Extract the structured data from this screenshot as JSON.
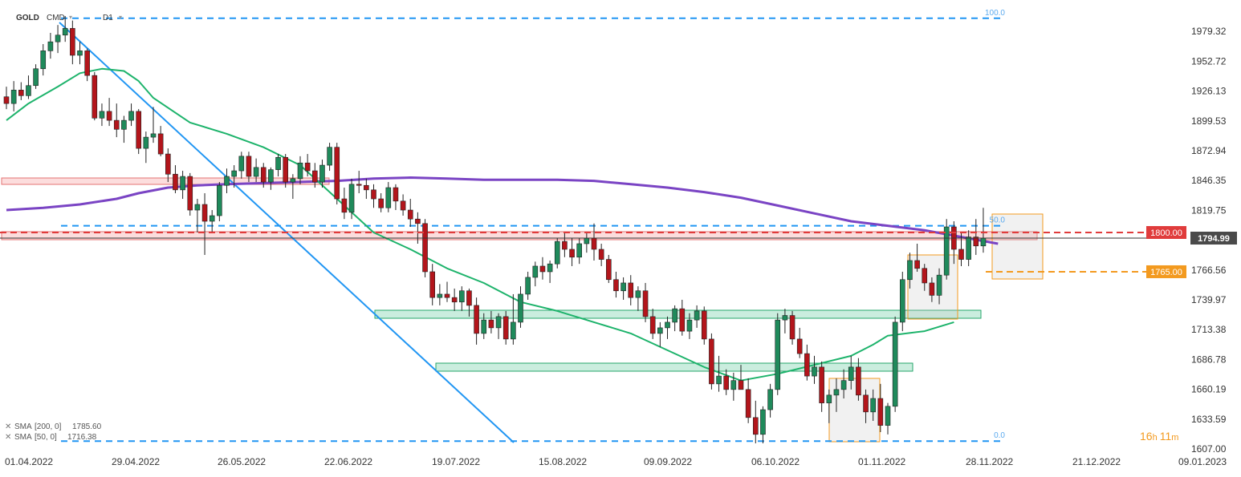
{
  "header": {
    "symbol": "GOLD",
    "source": "CMD",
    "timeframe": "D1"
  },
  "countdown": {
    "hours": "16",
    "h": "h",
    "minutes": "11",
    "m": "m"
  },
  "chart_data": {
    "type": "candlestick",
    "ylim": [
      1607.0,
      1993.0
    ],
    "y_ticks": [
      "1979.32",
      "1952.72",
      "1926.13",
      "1899.53",
      "1872.94",
      "1846.35",
      "1819.75",
      "1793.16",
      "1766.56",
      "1739.97",
      "1713.38",
      "1686.78",
      "1660.19",
      "1633.59",
      "1607.00"
    ],
    "x_ticks": [
      "01.04.2022",
      "29.04.2022",
      "26.05.2022",
      "22.06.2022",
      "19.07.2022",
      "15.08.2022",
      "09.09.2022",
      "06.10.2022",
      "01.11.2022",
      "28.11.2022",
      "21.12.2022",
      "09.01.2023"
    ],
    "price_tags": [
      {
        "value": "1800.00",
        "color": "#e03c3c"
      },
      {
        "value": "1794.99",
        "color": "#4a4a4a"
      },
      {
        "value": "1765.00",
        "color": "#f39a1f"
      }
    ],
    "fib_levels": [
      {
        "label": "100.0",
        "price": 1991
      },
      {
        "label": "50.0",
        "price": 1806
      },
      {
        "label": "0.0",
        "price": 1614
      }
    ],
    "indicators": [
      {
        "name": "SMA",
        "params": "[200, 0]",
        "value": "1785.60",
        "color": "#7a44c4"
      },
      {
        "name": "SMA",
        "params": "[50, 0]",
        "value": "1716.38",
        "color": "#1db36b"
      }
    ],
    "sma200_path": [
      [
        0,
        1820
      ],
      [
        5,
        1822
      ],
      [
        10,
        1825
      ],
      [
        15,
        1830
      ],
      [
        18,
        1835
      ],
      [
        22,
        1840
      ],
      [
        26,
        1842
      ],
      [
        30,
        1843
      ],
      [
        35,
        1844
      ],
      [
        40,
        1845
      ],
      [
        45,
        1846
      ],
      [
        50,
        1848
      ],
      [
        55,
        1849
      ],
      [
        60,
        1848
      ],
      [
        65,
        1847
      ],
      [
        70,
        1847
      ],
      [
        75,
        1847
      ],
      [
        80,
        1846
      ],
      [
        85,
        1843
      ],
      [
        90,
        1840
      ],
      [
        95,
        1836
      ],
      [
        100,
        1831
      ],
      [
        105,
        1824
      ],
      [
        110,
        1817
      ],
      [
        115,
        1810
      ],
      [
        120,
        1806
      ],
      [
        125,
        1802
      ],
      [
        130,
        1796
      ],
      [
        135,
        1790
      ]
    ],
    "sma50_path": [
      [
        0,
        1900
      ],
      [
        3,
        1915
      ],
      [
        7,
        1930
      ],
      [
        10,
        1942
      ],
      [
        13,
        1946
      ],
      [
        16,
        1944
      ],
      [
        18,
        1935
      ],
      [
        20,
        1920
      ],
      [
        25,
        1898
      ],
      [
        30,
        1888
      ],
      [
        35,
        1876
      ],
      [
        40,
        1860
      ],
      [
        42,
        1848
      ],
      [
        45,
        1830
      ],
      [
        50,
        1800
      ],
      [
        55,
        1785
      ],
      [
        60,
        1768
      ],
      [
        65,
        1755
      ],
      [
        70,
        1738
      ],
      [
        75,
        1730
      ],
      [
        80,
        1720
      ],
      [
        85,
        1710
      ],
      [
        90,
        1695
      ],
      [
        95,
        1680
      ],
      [
        100,
        1668
      ],
      [
        105,
        1674
      ],
      [
        110,
        1682
      ],
      [
        115,
        1690
      ],
      [
        118,
        1700
      ],
      [
        120,
        1708
      ],
      [
        125,
        1712
      ],
      [
        129,
        1720
      ]
    ],
    "candles": [
      [
        1921,
        1930,
        1910,
        1915
      ],
      [
        1915,
        1935,
        1908,
        1927
      ],
      [
        1927,
        1934,
        1918,
        1922
      ],
      [
        1922,
        1940,
        1919,
        1931
      ],
      [
        1931,
        1950,
        1928,
        1946
      ],
      [
        1946,
        1968,
        1940,
        1962
      ],
      [
        1962,
        1978,
        1955,
        1970
      ],
      [
        1970,
        1985,
        1960,
        1976
      ],
      [
        1976,
        1993,
        1970,
        1982
      ],
      [
        1982,
        1989,
        1950,
        1958
      ],
      [
        1958,
        1970,
        1950,
        1962
      ],
      [
        1962,
        1964,
        1935,
        1940
      ],
      [
        1940,
        1943,
        1900,
        1902
      ],
      [
        1902,
        1915,
        1895,
        1908
      ],
      [
        1908,
        1920,
        1895,
        1900
      ],
      [
        1900,
        1915,
        1885,
        1892
      ],
      [
        1892,
        1904,
        1880,
        1900
      ],
      [
        1900,
        1915,
        1895,
        1908
      ],
      [
        1908,
        1910,
        1870,
        1875
      ],
      [
        1875,
        1890,
        1862,
        1885
      ],
      [
        1885,
        1912,
        1880,
        1888
      ],
      [
        1888,
        1895,
        1868,
        1870
      ],
      [
        1870,
        1875,
        1845,
        1852
      ],
      [
        1852,
        1860,
        1835,
        1838
      ],
      [
        1838,
        1855,
        1830,
        1850
      ],
      [
        1850,
        1853,
        1815,
        1820
      ],
      [
        1820,
        1830,
        1800,
        1825
      ],
      [
        1825,
        1835,
        1780,
        1810
      ],
      [
        1810,
        1820,
        1800,
        1815
      ],
      [
        1815,
        1845,
        1810,
        1842
      ],
      [
        1842,
        1857,
        1835,
        1850
      ],
      [
        1850,
        1860,
        1840,
        1855
      ],
      [
        1855,
        1872,
        1848,
        1868
      ],
      [
        1868,
        1872,
        1845,
        1850
      ],
      [
        1850,
        1866,
        1845,
        1858
      ],
      [
        1858,
        1862,
        1840,
        1845
      ],
      [
        1845,
        1858,
        1838,
        1856
      ],
      [
        1856,
        1870,
        1850,
        1867
      ],
      [
        1867,
        1870,
        1840,
        1845
      ],
      [
        1845,
        1852,
        1830,
        1848
      ],
      [
        1848,
        1868,
        1843,
        1862
      ],
      [
        1862,
        1870,
        1850,
        1855
      ],
      [
        1855,
        1862,
        1840,
        1845
      ],
      [
        1845,
        1865,
        1840,
        1860
      ],
      [
        1860,
        1880,
        1855,
        1876
      ],
      [
        1876,
        1880,
        1825,
        1830
      ],
      [
        1830,
        1840,
        1812,
        1818
      ],
      [
        1818,
        1848,
        1812,
        1843
      ],
      [
        1843,
        1855,
        1835,
        1842
      ],
      [
        1842,
        1848,
        1830,
        1838
      ],
      [
        1838,
        1843,
        1822,
        1830
      ],
      [
        1830,
        1835,
        1818,
        1822
      ],
      [
        1822,
        1845,
        1818,
        1840
      ],
      [
        1840,
        1843,
        1820,
        1828
      ],
      [
        1828,
        1834,
        1815,
        1820
      ],
      [
        1820,
        1830,
        1805,
        1812
      ],
      [
        1812,
        1818,
        1790,
        1808
      ],
      [
        1808,
        1812,
        1760,
        1765
      ],
      [
        1765,
        1772,
        1735,
        1742
      ],
      [
        1742,
        1754,
        1735,
        1745
      ],
      [
        1745,
        1756,
        1738,
        1742
      ],
      [
        1742,
        1750,
        1730,
        1738
      ],
      [
        1738,
        1752,
        1730,
        1748
      ],
      [
        1748,
        1750,
        1725,
        1735
      ],
      [
        1735,
        1742,
        1700,
        1710
      ],
      [
        1710,
        1728,
        1705,
        1722
      ],
      [
        1722,
        1730,
        1710,
        1715
      ],
      [
        1715,
        1728,
        1705,
        1725
      ],
      [
        1725,
        1730,
        1700,
        1705
      ],
      [
        1705,
        1745,
        1700,
        1720
      ],
      [
        1720,
        1752,
        1715,
        1745
      ],
      [
        1745,
        1765,
        1740,
        1760
      ],
      [
        1760,
        1774,
        1752,
        1770
      ],
      [
        1770,
        1778,
        1758,
        1765
      ],
      [
        1765,
        1775,
        1755,
        1772
      ],
      [
        1772,
        1795,
        1768,
        1792
      ],
      [
        1792,
        1800,
        1778,
        1785
      ],
      [
        1785,
        1795,
        1770,
        1778
      ],
      [
        1778,
        1795,
        1772,
        1790
      ],
      [
        1790,
        1800,
        1782,
        1795
      ],
      [
        1795,
        1808,
        1775,
        1785
      ],
      [
        1785,
        1790,
        1770,
        1776
      ],
      [
        1776,
        1780,
        1755,
        1758
      ],
      [
        1758,
        1765,
        1742,
        1748
      ],
      [
        1748,
        1760,
        1740,
        1755
      ],
      [
        1755,
        1762,
        1735,
        1742
      ],
      [
        1742,
        1752,
        1730,
        1748
      ],
      [
        1748,
        1755,
        1720,
        1725
      ],
      [
        1725,
        1732,
        1705,
        1710
      ],
      [
        1710,
        1720,
        1698,
        1715
      ],
      [
        1715,
        1725,
        1705,
        1720
      ],
      [
        1720,
        1735,
        1712,
        1732
      ],
      [
        1732,
        1740,
        1708,
        1712
      ],
      [
        1712,
        1728,
        1705,
        1722
      ],
      [
        1722,
        1735,
        1715,
        1730
      ],
      [
        1730,
        1734,
        1700,
        1705
      ],
      [
        1705,
        1710,
        1660,
        1665
      ],
      [
        1665,
        1690,
        1658,
        1672
      ],
      [
        1672,
        1678,
        1655,
        1660
      ],
      [
        1660,
        1675,
        1650,
        1668
      ],
      [
        1668,
        1682,
        1660,
        1660
      ],
      [
        1660,
        1670,
        1630,
        1635
      ],
      [
        1635,
        1650,
        1612,
        1620
      ],
      [
        1620,
        1645,
        1612,
        1642
      ],
      [
        1642,
        1665,
        1635,
        1660
      ],
      [
        1660,
        1728,
        1655,
        1722
      ],
      [
        1722,
        1732,
        1710,
        1726
      ],
      [
        1726,
        1730,
        1700,
        1705
      ],
      [
        1705,
        1715,
        1688,
        1692
      ],
      [
        1692,
        1700,
        1668,
        1672
      ],
      [
        1672,
        1690,
        1665,
        1680
      ],
      [
        1680,
        1685,
        1640,
        1648
      ],
      [
        1648,
        1660,
        1630,
        1655
      ],
      [
        1655,
        1670,
        1640,
        1660
      ],
      [
        1660,
        1678,
        1652,
        1668
      ],
      [
        1668,
        1690,
        1660,
        1680
      ],
      [
        1680,
        1688,
        1650,
        1655
      ],
      [
        1655,
        1660,
        1630,
        1640
      ],
      [
        1640,
        1660,
        1632,
        1652
      ],
      [
        1652,
        1665,
        1622,
        1628
      ],
      [
        1628,
        1648,
        1620,
        1645
      ],
      [
        1645,
        1725,
        1640,
        1720
      ],
      [
        1720,
        1765,
        1712,
        1758
      ],
      [
        1758,
        1782,
        1750,
        1775
      ],
      [
        1775,
        1790,
        1765,
        1768
      ],
      [
        1768,
        1772,
        1748,
        1755
      ],
      [
        1755,
        1760,
        1738,
        1744
      ],
      [
        1744,
        1768,
        1736,
        1762
      ],
      [
        1762,
        1812,
        1758,
        1805
      ],
      [
        1805,
        1810,
        1772,
        1785
      ],
      [
        1785,
        1800,
        1770,
        1776
      ],
      [
        1776,
        1802,
        1770,
        1796
      ],
      [
        1796,
        1812,
        1780,
        1788
      ],
      [
        1788,
        1822,
        1782,
        1795
      ]
    ]
  }
}
